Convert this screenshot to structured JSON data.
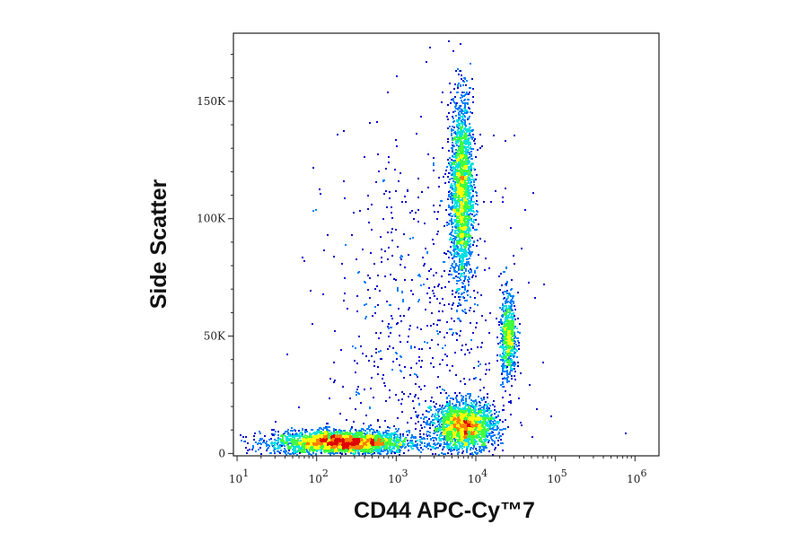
{
  "chart_data": {
    "type": "scatter",
    "subtype": "flow-cytometry density dot plot",
    "xlabel": "CD44 APC-Cy™7",
    "ylabel": "Side Scatter",
    "x_scale": "log",
    "xlim": [
      9,
      2000000
    ],
    "ylim": [
      -1000,
      179000
    ],
    "x_ticks": [
      {
        "value": 10,
        "base": "10",
        "exp": "1"
      },
      {
        "value": 100,
        "base": "10",
        "exp": "2"
      },
      {
        "value": 1000,
        "base": "10",
        "exp": "3"
      },
      {
        "value": 10000,
        "base": "10",
        "exp": "4"
      },
      {
        "value": 100000,
        "base": "10",
        "exp": "5"
      },
      {
        "value": 1000000,
        "base": "10",
        "exp": "6"
      }
    ],
    "y_ticks": [
      {
        "value": 0,
        "label": "0"
      },
      {
        "value": 50000,
        "label": "50K"
      },
      {
        "value": 100000,
        "label": 100000,
        "text": "100K"
      },
      {
        "value": 150000,
        "label": "150K"
      }
    ],
    "populations": [
      {
        "x_center": 200,
        "x_log_sd": 0.42,
        "y_center": 5000,
        "y_sd": 2500,
        "count": 3200
      },
      {
        "x_center": 7000,
        "x_log_sd": 0.2,
        "y_center": 12000,
        "y_sd": 5000,
        "count": 2200
      },
      {
        "x_center": 6500,
        "x_log_sd": 0.07,
        "y_center": 112000,
        "y_sd": 20000,
        "count": 2200
      },
      {
        "x_center": 25000,
        "x_log_sd": 0.05,
        "y_center": 50000,
        "y_sd": 9000,
        "count": 700
      },
      {
        "x_center": 2000,
        "x_log_sd": 0.6,
        "y_center": 50000,
        "y_sd": 45000,
        "count": 700
      }
    ],
    "colormap": [
      "#0000cc",
      "#0080ff",
      "#00e0e0",
      "#40ff40",
      "#ffff00",
      "#ff8000",
      "#e00000"
    ],
    "grid": false,
    "legend": "none"
  }
}
